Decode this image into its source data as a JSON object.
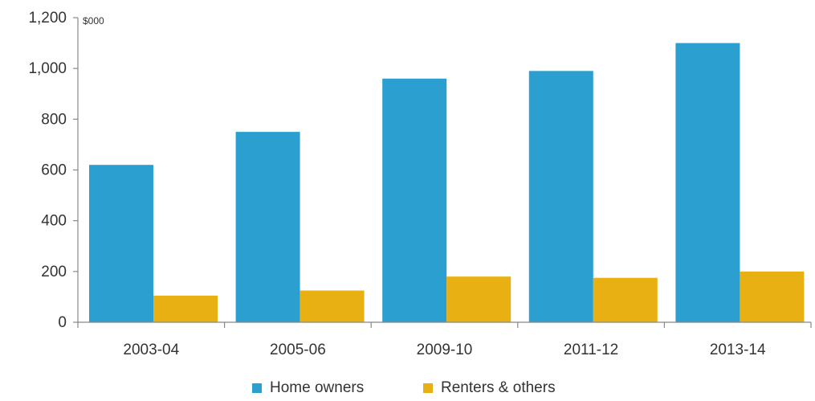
{
  "chart_data": {
    "type": "bar",
    "title": "",
    "xlabel": "",
    "ylabel": "$000",
    "ylim": [
      0,
      1200
    ],
    "yticks": [
      0,
      200,
      400,
      600,
      800,
      1000,
      1200
    ],
    "ytick_labels": [
      "0",
      "200",
      "400",
      "600",
      "800",
      "1,000",
      "1,200"
    ],
    "grid": false,
    "legend_position": "bottom",
    "categories": [
      "2003-04",
      "2005-06",
      "2009-10",
      "2011-12",
      "2013-14"
    ],
    "series": [
      {
        "name": "Home owners",
        "color": "#2a9fd0",
        "values": [
          620,
          750,
          960,
          990,
          1100
        ]
      },
      {
        "name": "Renters & others",
        "color": "#e8b012",
        "values": [
          105,
          125,
          180,
          175,
          200
        ]
      }
    ]
  }
}
